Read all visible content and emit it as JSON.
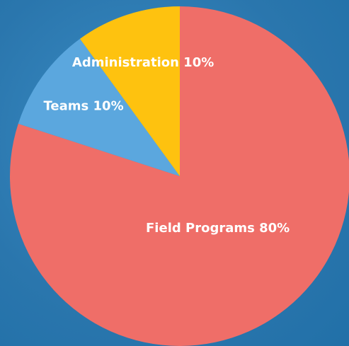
{
  "chart_data": {
    "type": "pie",
    "values": [
      80,
      10,
      10
    ],
    "value_labels": [
      "Field Programs 80%",
      "Teams 10%",
      "Administration 10%"
    ],
    "colors": [
      "#ef6e68",
      "#5ba7de",
      "#fec20f"
    ]
  }
}
